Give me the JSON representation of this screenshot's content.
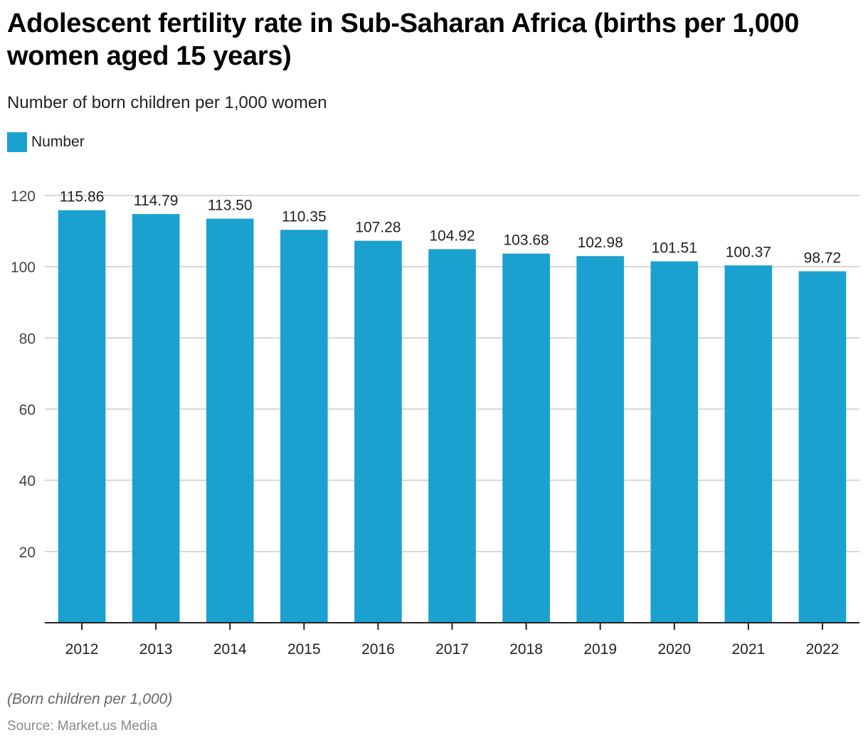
{
  "header": {
    "title": "Adolescent fertility rate in Sub-Saharan Africa (births per 1,000 women aged 15 years)",
    "subtitle": "Number of born children per 1,000 women"
  },
  "legend": {
    "label": "Number",
    "color": "#1aa1cf"
  },
  "footer": {
    "note": "(Born children per 1,000)",
    "source": "Source: Market.us Media"
  },
  "chart_data": {
    "type": "bar",
    "title": "Adolescent fertility rate in Sub-Saharan Africa (births per 1,000 women aged 15 years)",
    "subtitle": "Number of born children per 1,000 women",
    "xlabel": "",
    "ylabel": "",
    "categories": [
      "2012",
      "2013",
      "2014",
      "2015",
      "2016",
      "2017",
      "2018",
      "2019",
      "2020",
      "2021",
      "2022"
    ],
    "series": [
      {
        "name": "Number",
        "color": "#1aa1cf",
        "values": [
          115.86,
          114.79,
          113.5,
          110.35,
          107.28,
          104.92,
          103.68,
          102.98,
          101.51,
          100.37,
          98.72
        ],
        "labels": [
          "115.86",
          "114.79",
          "113.50",
          "110.35",
          "107.28",
          "104.92",
          "103.68",
          "102.98",
          "101.51",
          "100.37",
          "98.72"
        ]
      }
    ],
    "ylim": [
      0,
      120
    ],
    "yticks": [
      20,
      40,
      60,
      80,
      100,
      120
    ],
    "grid": true,
    "legend_position": "top-left",
    "data_labels": true
  }
}
